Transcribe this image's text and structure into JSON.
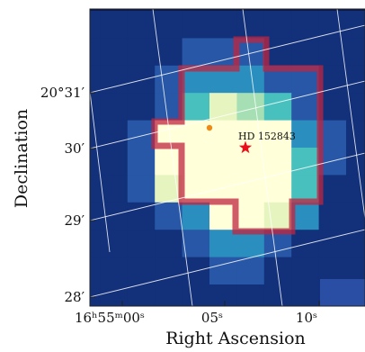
{
  "chart_data": {
    "type": "heatmap",
    "title": "",
    "xlabel": "Right Ascension",
    "ylabel": "Declination",
    "x_ticks": [
      {
        "label": "16ʰ55ᵐ00ˢ"
      },
      {
        "label": "05ˢ"
      },
      {
        "label": "10ˢ"
      }
    ],
    "y_ticks": [
      {
        "label": "20°31′"
      },
      {
        "label": "30′"
      },
      {
        "label": "29′"
      },
      {
        "label": "28′"
      }
    ],
    "grid": true,
    "colormap": [
      "#0b1a4a",
      "#13307a",
      "#2757a6",
      "#2a8fbf",
      "#47c0be",
      "#a6dfb4",
      "#e6f5c0",
      "#ffffd9"
    ],
    "aperture_color": "#c0243f",
    "star_marker_color": "#e8101a",
    "source_marker_color": "#f08a17",
    "intensity_grid": [
      [
        1,
        1,
        1,
        1,
        1,
        1,
        1,
        1,
        1,
        1,
        1,
        1,
        1
      ],
      [
        1,
        1,
        1,
        1,
        2,
        2,
        2,
        1,
        1,
        1,
        1,
        1,
        1
      ],
      [
        1,
        1,
        1,
        2,
        3,
        3,
        3,
        2,
        2,
        1,
        1,
        1,
        1
      ],
      [
        1,
        1,
        1,
        2,
        4,
        6,
        5,
        4,
        2,
        1,
        1,
        1,
        1
      ],
      [
        1,
        1,
        2,
        7,
        7,
        7,
        7,
        7,
        3,
        2,
        1,
        1,
        1
      ],
      [
        1,
        1,
        2,
        7,
        7,
        7,
        7,
        7,
        4,
        2,
        1,
        1,
        1
      ],
      [
        1,
        1,
        2,
        6,
        7,
        7,
        7,
        7,
        4,
        1,
        1,
        1,
        1
      ],
      [
        1,
        1,
        1,
        2,
        3,
        7,
        7,
        6,
        3,
        1,
        1,
        1,
        1
      ],
      [
        1,
        1,
        1,
        1,
        2,
        3,
        3,
        2,
        1,
        1,
        1,
        1,
        1
      ],
      [
        1,
        1,
        1,
        1,
        1,
        2,
        2,
        1,
        1,
        1,
        1,
        1,
        1
      ],
      [
        1,
        1,
        1,
        1,
        1,
        1,
        1,
        1,
        1,
        1,
        1,
        1,
        1
      ]
    ],
    "annotations": [
      {
        "label": "HD 152843",
        "marker": "star"
      },
      {
        "label": "",
        "marker": "dot"
      }
    ]
  }
}
